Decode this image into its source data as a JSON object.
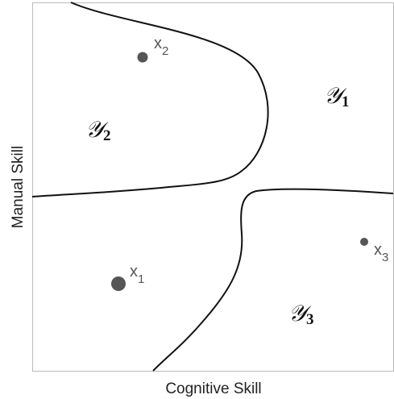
{
  "axes": {
    "x_label": "Cognitive Skill",
    "y_label": "Manual Skill"
  },
  "regions": [
    {
      "label": "𝒴",
      "subscript": "1"
    },
    {
      "label": "𝒴",
      "subscript": "2"
    },
    {
      "label": "𝒴",
      "subscript": "3"
    }
  ],
  "points": [
    {
      "label": "x",
      "subscript": "1"
    },
    {
      "label": "x",
      "subscript": "2"
    },
    {
      "label": "x",
      "subscript": "3"
    }
  ]
}
